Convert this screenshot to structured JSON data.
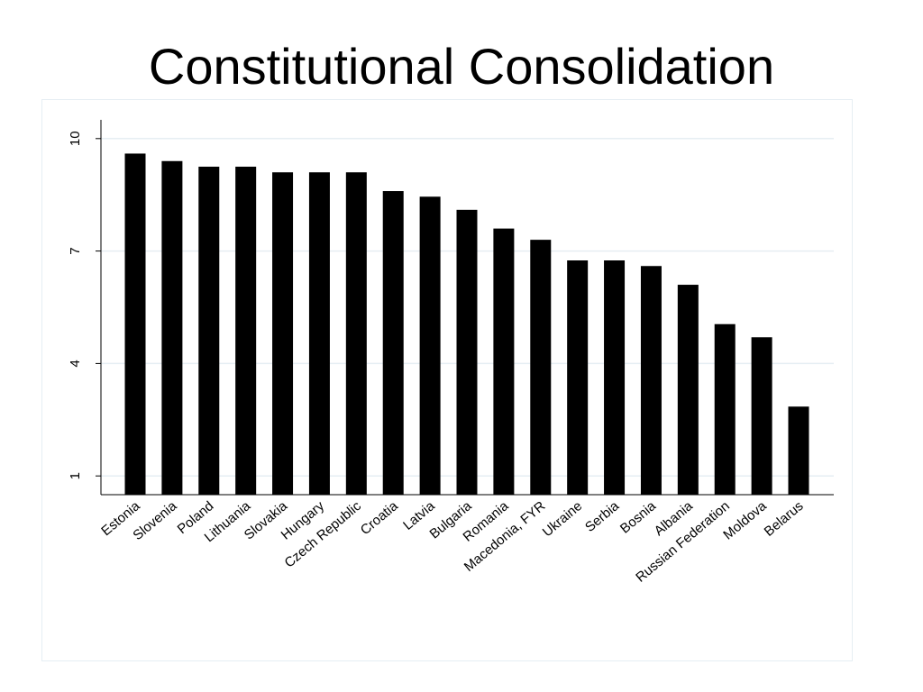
{
  "slide": {
    "title": "Constitutional Consolidation"
  },
  "chart_data": {
    "type": "bar",
    "title": "",
    "xlabel": "",
    "ylabel": "",
    "ylim": [
      0.5,
      10.5
    ],
    "yticks": [
      1,
      4,
      7,
      10
    ],
    "grid": true,
    "legend": "none",
    "categories": [
      "Estonia",
      "Slovenia",
      "Poland",
      "Lithuania",
      "Slovakia",
      "Hungary",
      "Czech Republic",
      "Croatia",
      "Latvia",
      "Bulgaria",
      "Romania",
      "Macedonia, FYR",
      "Ukraine",
      "Serbia",
      "Bosnia",
      "Albania",
      "Russian Federation",
      "Moldova",
      "Belarus"
    ],
    "values": [
      9.6,
      9.4,
      9.25,
      9.25,
      9.1,
      9.1,
      9.1,
      8.6,
      8.45,
      8.1,
      7.6,
      7.3,
      6.75,
      6.75,
      6.6,
      6.1,
      5.05,
      4.7,
      2.85
    ],
    "colors": {
      "bar": "#000000",
      "grid": "#e6eef3",
      "axis": "#000000"
    }
  }
}
